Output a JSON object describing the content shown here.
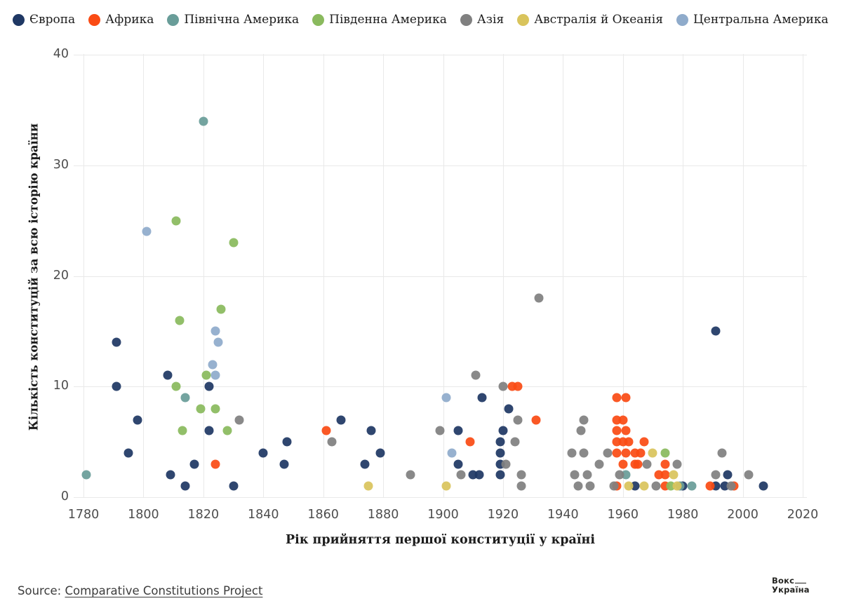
{
  "legend": {
    "items": [
      {
        "label": "Європа",
        "color": "#1f3864"
      },
      {
        "label": "Африка",
        "color": "#fa4b14"
      },
      {
        "label": "Північна Америка",
        "color": "#699d99"
      },
      {
        "label": "Південна Америка",
        "color": "#8aba5e"
      },
      {
        "label": "Азія",
        "color": "#808080"
      },
      {
        "label": "Австралія й Океанія",
        "color": "#d9c45c"
      },
      {
        "label": "Центральна Америка",
        "color": "#8fabcb"
      }
    ]
  },
  "chart_data": {
    "type": "scatter",
    "title": "",
    "xlabel": "Рік прийняття першої конституції у країні",
    "ylabel": "Кількість конституцій за всю історію країни",
    "xlim": [
      1780,
      2020
    ],
    "ylim": [
      0,
      40
    ],
    "x_ticks": [
      1780,
      1800,
      1820,
      1840,
      1860,
      1880,
      1900,
      1920,
      1940,
      1960,
      1980,
      2000,
      2020
    ],
    "y_ticks": [
      0,
      10,
      20,
      30,
      40
    ],
    "grid": true,
    "legend_position": "top-left",
    "series": [
      {
        "name": "Європа",
        "color": "#1f3864",
        "points": [
          [
            1791,
            14
          ],
          [
            1791,
            10
          ],
          [
            1795,
            4
          ],
          [
            1798,
            7
          ],
          [
            1808,
            11
          ],
          [
            1809,
            2
          ],
          [
            1814,
            1
          ],
          [
            1817,
            3
          ],
          [
            1822,
            10
          ],
          [
            1822,
            6
          ],
          [
            1830,
            1
          ],
          [
            1840,
            4
          ],
          [
            1848,
            5
          ],
          [
            1847,
            3
          ],
          [
            1866,
            7
          ],
          [
            1876,
            6
          ],
          [
            1879,
            4
          ],
          [
            1874,
            3
          ],
          [
            1905,
            6
          ],
          [
            1905,
            3
          ],
          [
            1910,
            2
          ],
          [
            1912,
            2
          ],
          [
            1913,
            9
          ],
          [
            1919,
            5
          ],
          [
            1919,
            4
          ],
          [
            1919,
            3
          ],
          [
            1919,
            2
          ],
          [
            1920,
            6
          ],
          [
            1922,
            8
          ],
          [
            1964,
            1
          ],
          [
            1980,
            1
          ],
          [
            1991,
            15
          ],
          [
            1991,
            1
          ],
          [
            1994,
            1
          ],
          [
            1995,
            2
          ],
          [
            2007,
            1
          ]
        ]
      },
      {
        "name": "Африка",
        "color": "#fa4b14",
        "points": [
          [
            1824,
            3
          ],
          [
            1861,
            6
          ],
          [
            1909,
            5
          ],
          [
            1923,
            10
          ],
          [
            1925,
            10
          ],
          [
            1931,
            7
          ],
          [
            1958,
            9
          ],
          [
            1961,
            9
          ],
          [
            1958,
            7
          ],
          [
            1960,
            7
          ],
          [
            1958,
            6
          ],
          [
            1961,
            6
          ],
          [
            1958,
            5
          ],
          [
            1960,
            5
          ],
          [
            1962,
            5
          ],
          [
            1967,
            5
          ],
          [
            1958,
            4
          ],
          [
            1961,
            4
          ],
          [
            1964,
            4
          ],
          [
            1966,
            4
          ],
          [
            1960,
            3
          ],
          [
            1964,
            3
          ],
          [
            1965,
            3
          ],
          [
            1974,
            3
          ],
          [
            1972,
            2
          ],
          [
            1974,
            2
          ],
          [
            1958,
            1
          ],
          [
            1974,
            1
          ],
          [
            1989,
            1
          ],
          [
            1997,
            1
          ]
        ]
      },
      {
        "name": "Північна Америка",
        "color": "#699d99",
        "points": [
          [
            1781,
            2
          ],
          [
            1820,
            34
          ],
          [
            1814,
            9
          ],
          [
            1961,
            2
          ],
          [
            1979,
            1
          ],
          [
            1983,
            1
          ]
        ]
      },
      {
        "name": "Південна Америка",
        "color": "#8aba5e",
        "points": [
          [
            1811,
            25
          ],
          [
            1830,
            23
          ],
          [
            1826,
            17
          ],
          [
            1812,
            16
          ],
          [
            1821,
            11
          ],
          [
            1811,
            10
          ],
          [
            1819,
            8
          ],
          [
            1824,
            8
          ],
          [
            1813,
            6
          ],
          [
            1828,
            6
          ],
          [
            1974,
            4
          ],
          [
            1976,
            1
          ]
        ]
      },
      {
        "name": "Азія",
        "color": "#808080",
        "points": [
          [
            1832,
            7
          ],
          [
            1863,
            5
          ],
          [
            1889,
            2
          ],
          [
            1899,
            6
          ],
          [
            1906,
            2
          ],
          [
            1911,
            11
          ],
          [
            1920,
            10
          ],
          [
            1925,
            7
          ],
          [
            1924,
            5
          ],
          [
            1921,
            3
          ],
          [
            1926,
            2
          ],
          [
            1926,
            1
          ],
          [
            1932,
            18
          ],
          [
            1943,
            4
          ],
          [
            1944,
            2
          ],
          [
            1945,
            1
          ],
          [
            1946,
            6
          ],
          [
            1947,
            7
          ],
          [
            1947,
            4
          ],
          [
            1948,
            2
          ],
          [
            1949,
            1
          ],
          [
            1952,
            3
          ],
          [
            1955,
            4
          ],
          [
            1957,
            1
          ],
          [
            1959,
            2
          ],
          [
            1968,
            3
          ],
          [
            1971,
            1
          ],
          [
            1978,
            3
          ],
          [
            1991,
            2
          ],
          [
            1993,
            4
          ],
          [
            1996,
            1
          ],
          [
            2002,
            2
          ]
        ]
      },
      {
        "name": "Австралія й Океанія",
        "color": "#d9c45c",
        "points": [
          [
            1875,
            1
          ],
          [
            1901,
            1
          ],
          [
            1962,
            1
          ],
          [
            1967,
            1
          ],
          [
            1970,
            4
          ],
          [
            1977,
            2
          ],
          [
            1978,
            1
          ]
        ]
      },
      {
        "name": "Центральна Америка",
        "color": "#8fabcb",
        "points": [
          [
            1801,
            24
          ],
          [
            1824,
            15
          ],
          [
            1825,
            14
          ],
          [
            1823,
            12
          ],
          [
            1824,
            11
          ],
          [
            1901,
            9
          ],
          [
            1903,
            4
          ]
        ]
      }
    ]
  },
  "footer": {
    "source_prefix": "Source: ",
    "source_link": "Comparative Constitutions Project",
    "logo_line1": "Вокс",
    "logo_line2": "Україна"
  }
}
